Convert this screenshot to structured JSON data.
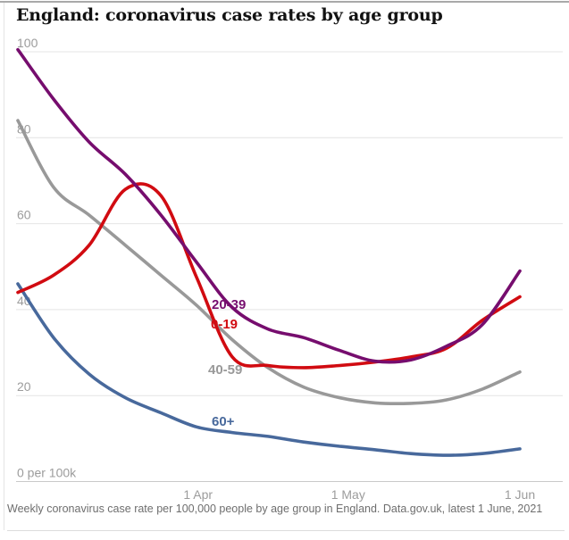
{
  "page": {
    "title": "England: coronavirus case rates by age group",
    "source_note": "Weekly coronavirus case rate per 100,000 people by age group in England. Data.gov.uk, latest 1 June, 2021"
  },
  "colors": {
    "title_text": "#121212",
    "axis_text": "#9c9c9c",
    "footer_text": "#6e6e6e",
    "gridline": "#e4e4e4",
    "zero_line": "#c9c9c9",
    "purple_20_39": "#760d6e",
    "red_0_19": "#d10b11",
    "gray_40_59": "#999999",
    "blue_60_plus": "#48699c"
  },
  "chart_data": {
    "type": "line",
    "title": "England: coronavirus case rates by age group",
    "xlabel": "",
    "ylabel": "weekly cases per 100,000 people",
    "ylim": [
      0,
      100
    ],
    "grid": "horizontal",
    "legend_position": "inline-labels-on-lines",
    "y_ticks": [
      {
        "value": 100,
        "label": "100"
      },
      {
        "value": 80,
        "label": "80"
      },
      {
        "value": 60,
        "label": "60"
      },
      {
        "value": 40,
        "label": "40"
      },
      {
        "value": 20,
        "label": "20"
      },
      {
        "value": 0,
        "label": "0 per 100k"
      }
    ],
    "x_ticks": [
      {
        "t": 0.359,
        "label": "1 Apr"
      },
      {
        "t": 0.658,
        "label": "1 May"
      },
      {
        "t": 1,
        "label": "1 Jun"
      }
    ],
    "t": [
      0,
      0.071,
      0.142,
      0.214,
      0.285,
      0.356,
      0.427,
      0.498,
      0.569,
      0.641,
      0.712,
      0.783,
      0.854,
      0.925,
      1
    ],
    "series": [
      {
        "name": "20-39",
        "color": "#760d6e",
        "values": [
          100.5,
          89,
          79,
          71.5,
          62,
          51,
          40.5,
          35.5,
          33.5,
          30.5,
          28,
          28.3,
          31.5,
          36.5,
          49
        ]
      },
      {
        "name": "0-19",
        "color": "#d10b11",
        "values": [
          44,
          48,
          55,
          68,
          66.5,
          47.5,
          29,
          27,
          26.5,
          27,
          27.8,
          29,
          31,
          37.5,
          43
        ]
      },
      {
        "name": "40-59",
        "color": "#999999",
        "values": [
          84,
          68.5,
          62,
          55,
          48,
          41,
          33,
          26.5,
          22,
          19.5,
          18.3,
          18.2,
          19,
          21.5,
          25.5
        ]
      },
      {
        "name": "60+",
        "color": "#48699c",
        "values": [
          46,
          33.5,
          25,
          19.5,
          16,
          12.7,
          11.4,
          10.5,
          9.2,
          8.2,
          7.4,
          6.5,
          6.1,
          6.5,
          7.6
        ]
      }
    ]
  }
}
